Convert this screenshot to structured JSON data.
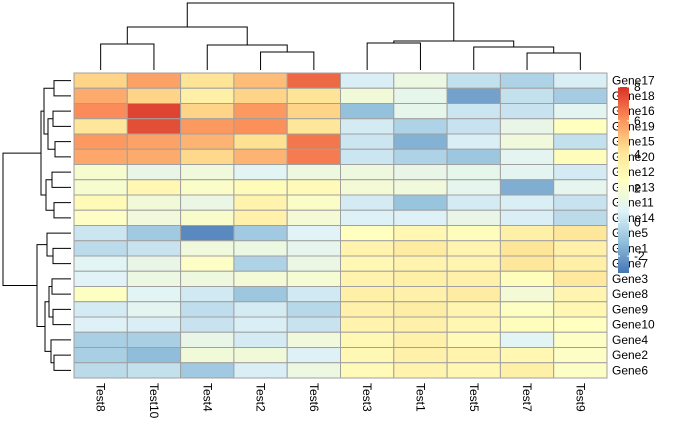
{
  "chart_data": {
    "type": "heatmap",
    "title": "",
    "xlabel": "",
    "ylabel": "",
    "columns": [
      "Test8",
      "Test10",
      "Test4",
      "Test2",
      "Test6",
      "Test3",
      "Test1",
      "Test5",
      "Test7",
      "Test9"
    ],
    "rows": [
      "Gene17",
      "Gene18",
      "Gene16",
      "Gene19",
      "Gene15",
      "Gene20",
      "Gene12",
      "Gene13",
      "Gene11",
      "Gene14",
      "Gene5",
      "Gene1",
      "Gene7",
      "Gene3",
      "Gene8",
      "Gene9",
      "Gene10",
      "Gene4",
      "Gene2",
      "Gene6"
    ],
    "values": [
      [
        4.6,
        5.7,
        4.1,
        5.1,
        6.9,
        0.5,
        1.4,
        0.0,
        -0.5,
        0.5
      ],
      [
        5.5,
        4.6,
        3.4,
        4.6,
        4.1,
        1.7,
        1.1,
        -1.9,
        0.0,
        -0.7
      ],
      [
        6.2,
        7.6,
        4.6,
        5.9,
        4.6,
        -1.1,
        1.1,
        0.2,
        0.1,
        0.9
      ],
      [
        3.9,
        7.4,
        5.9,
        6.1,
        3.9,
        0.4,
        -0.5,
        0.1,
        1.2,
        2.5
      ],
      [
        5.9,
        5.7,
        5.3,
        4.3,
        6.6,
        0.2,
        -1.5,
        0.5,
        1.6,
        0.0
      ],
      [
        5.6,
        5.5,
        4.5,
        5.3,
        6.5,
        0.2,
        -0.5,
        -0.9,
        0.9,
        2.6
      ],
      [
        2.0,
        1.2,
        1.6,
        0.8,
        1.5,
        1.5,
        1.2,
        1.1,
        0.9,
        0.4
      ],
      [
        2.0,
        3.0,
        2.2,
        2.7,
        2.8,
        1.8,
        1.6,
        1.0,
        -1.6,
        1.0
      ],
      [
        2.8,
        1.7,
        1.3,
        3.2,
        2.2,
        0.4,
        -1.0,
        0.4,
        0.5,
        0.1
      ],
      [
        2.3,
        1.6,
        2.1,
        3.3,
        1.8,
        0.6,
        0.6,
        1.2,
        0.5,
        -0.2
      ],
      [
        0.2,
        -0.8,
        -2.5,
        -0.8,
        0.7,
        2.5,
        3.0,
        2.6,
        3.4,
        3.9
      ],
      [
        -0.2,
        0.1,
        1.6,
        1.4,
        1.0,
        3.2,
        3.6,
        3.1,
        4.0,
        3.3
      ],
      [
        0.8,
        1.2,
        2.3,
        -0.5,
        1.3,
        2.9,
        3.2,
        3.1,
        3.9,
        3.4
      ],
      [
        0.7,
        1.4,
        1.5,
        1.8,
        1.9,
        3.2,
        3.4,
        3.3,
        2.6,
        3.8
      ],
      [
        2.4,
        0.8,
        0.3,
        -0.9,
        0.3,
        3.4,
        3.3,
        3.6,
        1.8,
        3.1
      ],
      [
        0.4,
        0.9,
        -0.1,
        0.4,
        -0.3,
        3.3,
        3.5,
        3.1,
        2.4,
        3.0
      ],
      [
        0.6,
        0.5,
        0.1,
        0.5,
        0.1,
        3.2,
        3.3,
        3.0,
        2.6,
        2.5
      ],
      [
        -0.6,
        -0.6,
        1.2,
        0.4,
        1.6,
        2.9,
        3.3,
        2.8,
        0.8,
        2.3
      ],
      [
        -0.6,
        -1.2,
        1.7,
        1.7,
        0.6,
        2.9,
        3.3,
        3.2,
        3.0,
        2.3
      ],
      [
        -0.2,
        0.0,
        -0.8,
        0.5,
        1.4,
        2.8,
        3.2,
        3.0,
        3.4,
        2.3
      ]
    ],
    "color_scale": {
      "min": -3,
      "max": 8,
      "colors": [
        "#4575b4",
        "#91bfdb",
        "#e0f3f8",
        "#ffffbf",
        "#fee090",
        "#fc8d59",
        "#d73027"
      ],
      "ticks": [
        "-2",
        "0",
        "2",
        "4",
        "6",
        "8"
      ]
    },
    "cell_border_color": "#a0a0a0",
    "grid": false,
    "legend_placement": "right",
    "row_dendrogram": true,
    "column_dendrogram": true
  }
}
